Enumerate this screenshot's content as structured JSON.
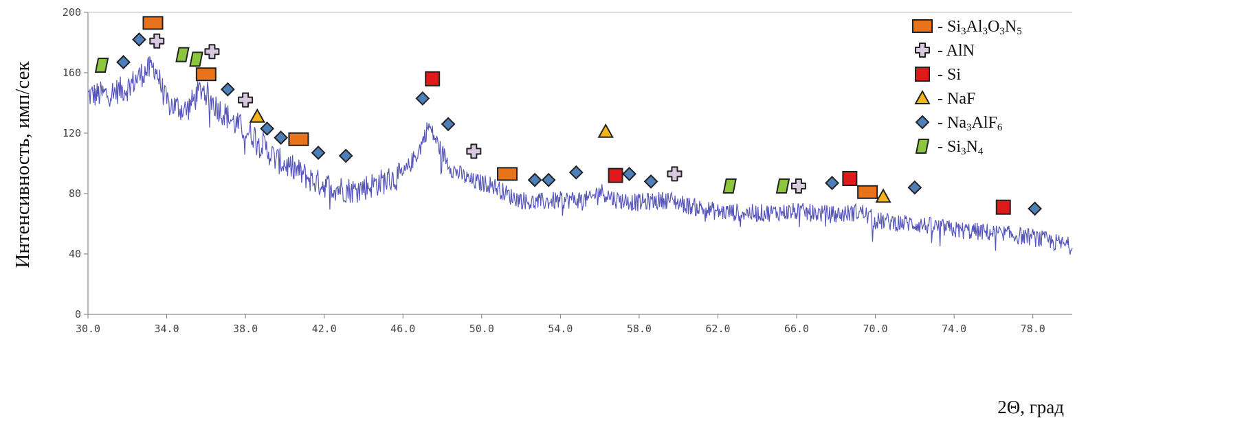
{
  "chart_data": {
    "type": "line",
    "xlabel": "2Θ, град",
    "ylabel": "Интенсивность, имп/сек",
    "xlim": [
      30,
      80
    ],
    "ylim": [
      0,
      200
    ],
    "x_ticks": [
      "30.0",
      "34.0",
      "38.0",
      "42.0",
      "46.0",
      "50.0",
      "54.0",
      "58.0",
      "62.0",
      "66.0",
      "70.0",
      "74.0",
      "78.0"
    ],
    "y_ticks": [
      "0",
      "40",
      "80",
      "120",
      "160",
      "200"
    ],
    "series_color": "#5555bb",
    "trend": {
      "x": [
        30,
        31,
        32,
        32.8,
        33.4,
        34,
        35,
        35.8,
        36.5,
        37.5,
        38.5,
        39.5,
        40.5,
        41.5,
        42.5,
        43.5,
        44,
        45,
        46,
        46.8,
        47.3,
        47.8,
        48.5,
        49.5,
        50.5,
        51.5,
        52.5,
        53.5,
        54.5,
        55.5,
        56,
        56.8,
        58,
        59.5,
        60.5,
        62,
        64,
        66,
        68,
        69.3,
        70,
        72,
        74,
        76,
        78,
        80
      ],
      "y": [
        145,
        146,
        150,
        160,
        164,
        140,
        135,
        150,
        138,
        126,
        118,
        103,
        96,
        88,
        84,
        82,
        84,
        88,
        92,
        108,
        125,
        112,
        96,
        88,
        86,
        78,
        74,
        75,
        76,
        76,
        82,
        76,
        74,
        76,
        72,
        68,
        67,
        68,
        66,
        68,
        62,
        60,
        56,
        54,
        51,
        45
      ]
    },
    "legend": [
      {
        "shape": "rect",
        "color": "#e8731a",
        "label_main": "- Si",
        "subs": [
          "3",
          "3",
          "3",
          "5"
        ],
        "mids": [
          "Al",
          "O",
          "N"
        ]
      },
      {
        "shape": "cross",
        "color": "#d8c8e0",
        "label_main": "- AlN",
        "subs": [],
        "mids": []
      },
      {
        "shape": "square",
        "color": "#e01a1a",
        "label_main": "- Si",
        "subs": [],
        "mids": []
      },
      {
        "shape": "triangle",
        "color": "#f5b41a",
        "label_main": "- NaF",
        "subs": [],
        "mids": []
      },
      {
        "shape": "diamond",
        "color": "#4f7fb8",
        "label_main": "- Na",
        "subs": [
          "3",
          "6"
        ],
        "mids": [
          "AlF"
        ]
      },
      {
        "shape": "para",
        "color": "#8cc63f",
        "label_main": "- Si",
        "subs": [
          "3",
          "4"
        ],
        "mids": [
          "N"
        ]
      }
    ],
    "markers": [
      {
        "phase": "Si3Al3O3N5",
        "x": 33.3,
        "y": 193
      },
      {
        "phase": "Si3Al3O3N5",
        "x": 36.0,
        "y": 159
      },
      {
        "phase": "Si3Al3O3N5",
        "x": 40.7,
        "y": 116
      },
      {
        "phase": "Si3Al3O3N5",
        "x": 51.3,
        "y": 93
      },
      {
        "phase": "Si3Al3O3N5",
        "x": 69.6,
        "y": 81
      },
      {
        "phase": "AlN",
        "x": 33.5,
        "y": 181
      },
      {
        "phase": "AlN",
        "x": 36.3,
        "y": 174
      },
      {
        "phase": "AlN",
        "x": 38.0,
        "y": 142
      },
      {
        "phase": "AlN",
        "x": 49.6,
        "y": 108
      },
      {
        "phase": "AlN",
        "x": 59.8,
        "y": 93
      },
      {
        "phase": "AlN",
        "x": 66.1,
        "y": 85
      },
      {
        "phase": "Si",
        "x": 47.5,
        "y": 156
      },
      {
        "phase": "Si",
        "x": 56.8,
        "y": 92
      },
      {
        "phase": "Si",
        "x": 68.7,
        "y": 90
      },
      {
        "phase": "Si",
        "x": 76.5,
        "y": 71
      },
      {
        "phase": "NaF",
        "x": 38.6,
        "y": 131
      },
      {
        "phase": "NaF",
        "x": 56.3,
        "y": 121
      },
      {
        "phase": "NaF",
        "x": 70.4,
        "y": 78
      },
      {
        "phase": "Na3AlF6",
        "x": 32.6,
        "y": 182
      },
      {
        "phase": "Na3AlF6",
        "x": 31.8,
        "y": 167
      },
      {
        "phase": "Na3AlF6",
        "x": 37.1,
        "y": 149
      },
      {
        "phase": "Na3AlF6",
        "x": 39.1,
        "y": 123
      },
      {
        "phase": "Na3AlF6",
        "x": 39.8,
        "y": 117
      },
      {
        "phase": "Na3AlF6",
        "x": 41.7,
        "y": 107
      },
      {
        "phase": "Na3AlF6",
        "x": 43.1,
        "y": 105
      },
      {
        "phase": "Na3AlF6",
        "x": 47.0,
        "y": 143
      },
      {
        "phase": "Na3AlF6",
        "x": 48.3,
        "y": 126
      },
      {
        "phase": "Na3AlF6",
        "x": 52.7,
        "y": 89
      },
      {
        "phase": "Na3AlF6",
        "x": 53.4,
        "y": 89
      },
      {
        "phase": "Na3AlF6",
        "x": 54.8,
        "y": 94
      },
      {
        "phase": "Na3AlF6",
        "x": 57.5,
        "y": 93
      },
      {
        "phase": "Na3AlF6",
        "x": 58.6,
        "y": 88
      },
      {
        "phase": "Na3AlF6",
        "x": 67.8,
        "y": 87
      },
      {
        "phase": "Na3AlF6",
        "x": 72.0,
        "y": 84
      },
      {
        "phase": "Na3AlF6",
        "x": 78.1,
        "y": 70
      },
      {
        "phase": "Si3N4",
        "x": 30.7,
        "y": 165
      },
      {
        "phase": "Si3N4",
        "x": 34.8,
        "y": 172
      },
      {
        "phase": "Si3N4",
        "x": 35.5,
        "y": 169
      },
      {
        "phase": "Si3N4",
        "x": 62.6,
        "y": 85
      },
      {
        "phase": "Si3N4",
        "x": 65.3,
        "y": 85
      }
    ]
  }
}
